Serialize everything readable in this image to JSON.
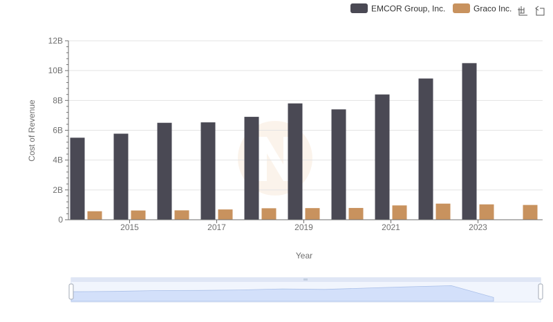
{
  "chart_data": {
    "type": "bar",
    "title": "",
    "xlabel": "Year",
    "ylabel": "Cost of Revenue",
    "categories": [
      "2014",
      "2015",
      "2016",
      "2017",
      "2018",
      "2019",
      "2020",
      "2021",
      "2022",
      "2023",
      "2024"
    ],
    "x_tick_labels": [
      "2015",
      "2017",
      "2019",
      "2021",
      "2023"
    ],
    "y_tick_labels": [
      "0",
      "2B",
      "4B",
      "6B",
      "8B",
      "10B",
      "12B"
    ],
    "ylim": [
      0,
      12000000000
    ],
    "grid": true,
    "legend_position": "top-right",
    "series": [
      {
        "name": "EMCOR Group, Inc.",
        "color": "#4a4954",
        "values": [
          5500000000,
          5770000000,
          6500000000,
          6530000000,
          6900000000,
          7800000000,
          7400000000,
          8400000000,
          9470000000,
          10500000000,
          null
        ]
      },
      {
        "name": "Graco Inc.",
        "color": "#c8925e",
        "values": [
          570000000,
          620000000,
          630000000,
          690000000,
          770000000,
          780000000,
          790000000,
          960000000,
          1080000000,
          1030000000,
          990000000
        ]
      }
    ]
  },
  "toolbar": {
    "zoom_icon": "zoom-icon",
    "restore_icon": "restore-icon"
  },
  "data_zoom": {
    "range": [
      0,
      100
    ]
  }
}
